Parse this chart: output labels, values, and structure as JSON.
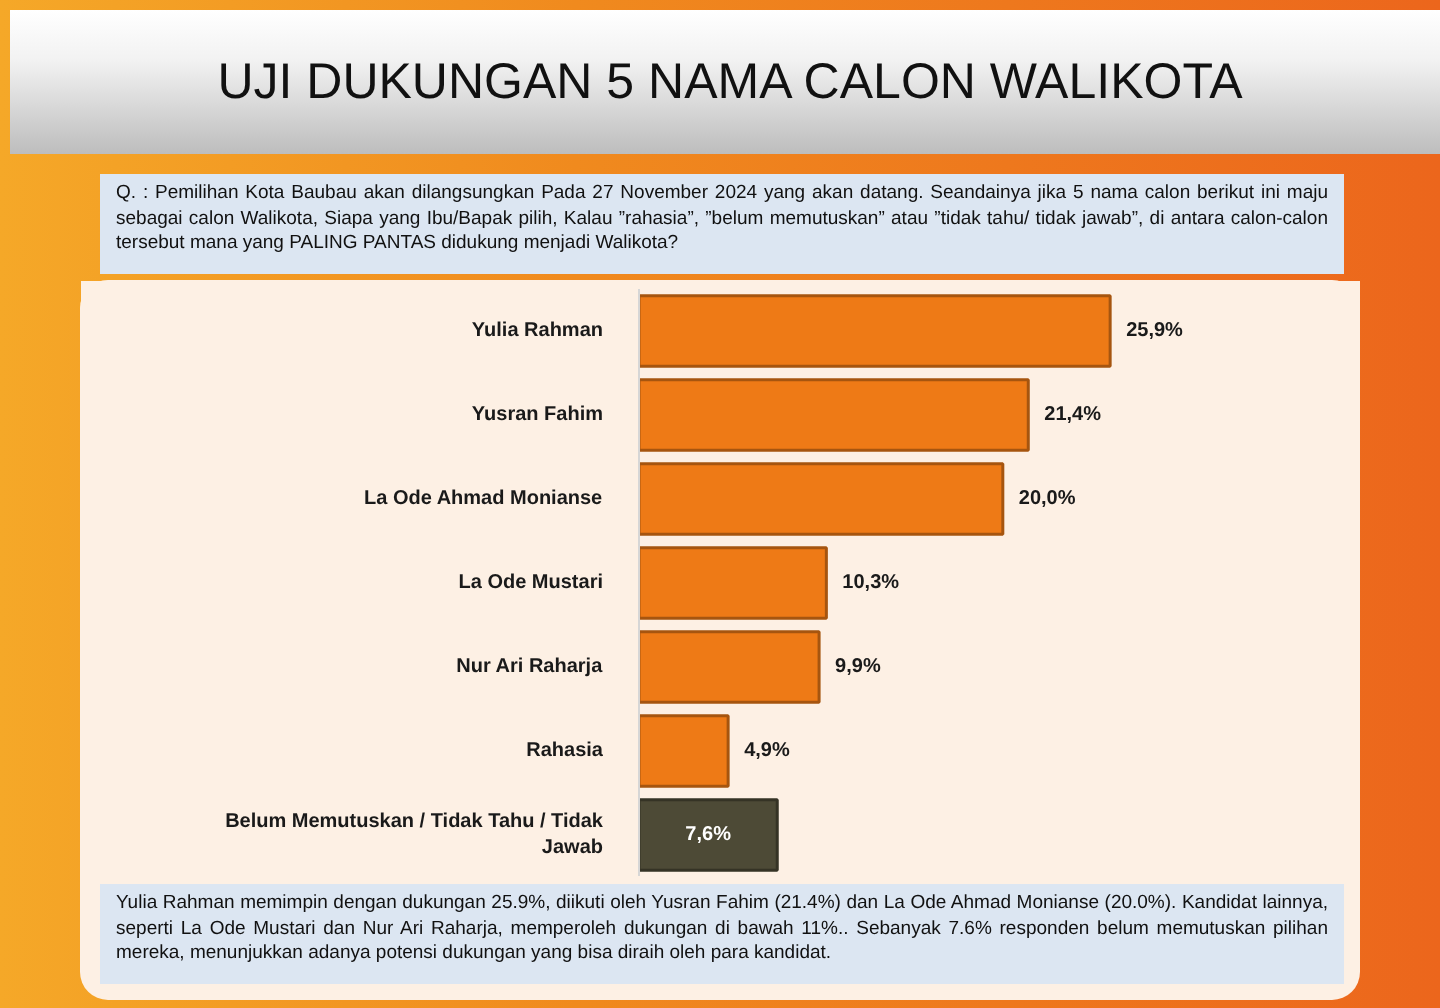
{
  "chart_data": {
    "type": "bar",
    "orientation": "horizontal",
    "title": "UJI DUKUNGAN 5 NAMA CALON WALIKOTA",
    "categories": [
      "Yulia Rahman",
      "Yusran Fahim",
      "La Ode Ahmad Monianse",
      "La Ode Mustari",
      "Nur Ari Raharja",
      "Rahasia",
      "Belum Memutuskan / Tidak Tahu / Tidak Jawab"
    ],
    "values": [
      25.9,
      21.4,
      20.0,
      10.3,
      9.9,
      4.9,
      7.6
    ],
    "colors": [
      "#ee7a16",
      "#ee7a16",
      "#ee7a16",
      "#ee7a16",
      "#ee7a16",
      "#ee7a16",
      "#4d4a36"
    ],
    "value_labels": [
      "25,9%",
      "21,4%",
      "20,0%",
      "10,3%",
      "9,9%",
      "4,9%",
      "7,6%"
    ],
    "annotations": [
      "Q. : Pemilihan Kota Baubau akan dilangsungkan Pada 27 November 2024 yang akan datang. Seandainya jika 5 nama calon berikut ini maju sebagai calon Walikota, Siapa yang Ibu/Bapak pilih, Kalau ”rahasia”, ”belum memutuskan” atau ”tidak tahu/ tidak jawab”, di antara calon-calon tersebut mana yang PALING PANTAS didukung menjadi Walikota?",
      "Yulia Rahman memimpin dengan dukungan 25.9%, diikuti oleh Yusran Fahim (21.4%) dan La Ode Ahmad Monianse (20.0%). Kandidat lainnya, seperti La Ode Mustari dan Nur Ari Raharja, memperoleh dukungan di bawah 11%.. Sebanyak 7.6% responden belum memutuskan pilihan mereka, menunjukkan adanya potensi dukungan yang bisa diraih oleh para kandidat."
    ]
  }
}
